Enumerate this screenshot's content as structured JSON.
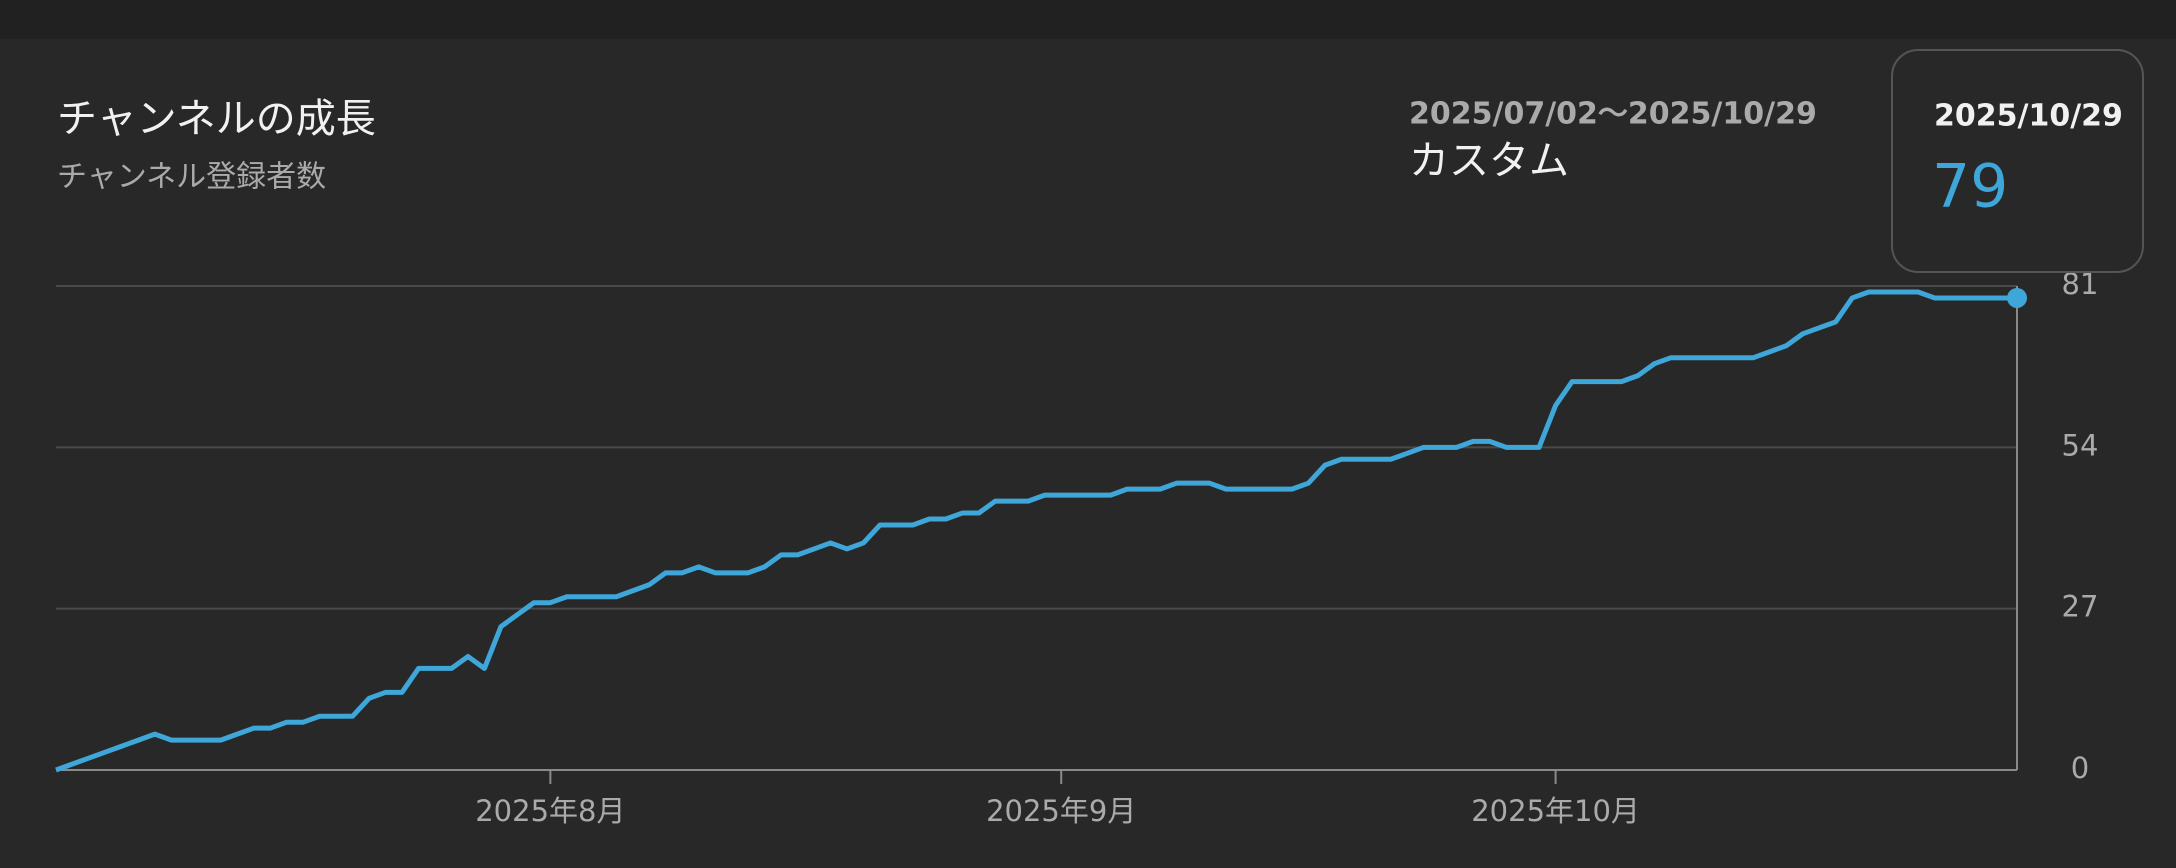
{
  "header": {
    "title": "チャンネルの成長",
    "subtitle": "チャンネル登録者数",
    "date_range": "2025/07/02〜2025/10/29",
    "period": "カスタム"
  },
  "tooltip": {
    "date": "2025/10/29"
  },
  "chart_data": {
    "type": "line",
    "color": "#3ea6d8",
    "categories": [
      null,
      null,
      null,
      null,
      null,
      null,
      null,
      null,
      null,
      null,
      null,
      null,
      null,
      null,
      null,
      null,
      null,
      null,
      null,
      null,
      null,
      null,
      null,
      null,
      null,
      null,
      null,
      null,
      null,
      null,
      "2025年8月",
      null,
      null,
      null,
      null,
      null,
      null,
      null,
      null,
      null,
      null,
      null,
      null,
      null,
      null,
      null,
      null,
      null,
      null,
      null,
      null,
      null,
      null,
      null,
      null,
      null,
      null,
      null,
      null,
      null,
      null,
      "2025年9月",
      null,
      null,
      null,
      null,
      null,
      null,
      null,
      null,
      null,
      null,
      null,
      null,
      null,
      null,
      null,
      null,
      null,
      null,
      null,
      null,
      null,
      null,
      null,
      null,
      null,
      null,
      null,
      null,
      null,
      "2025年10月",
      null,
      null,
      null,
      null,
      null,
      null,
      null,
      null,
      null,
      null,
      null,
      null,
      null,
      null,
      null,
      null,
      null,
      null,
      null,
      null,
      null,
      null,
      null,
      null,
      null,
      null,
      null,
      null
    ],
    "values": [
      0,
      1,
      2,
      3,
      4,
      5,
      6,
      5,
      5,
      5,
      5,
      6,
      7,
      7,
      8,
      8,
      9,
      9,
      9,
      12,
      13,
      13,
      17,
      17,
      17,
      19,
      17,
      24,
      26,
      28,
      28,
      29,
      29,
      29,
      29,
      30,
      31,
      33,
      33,
      34,
      33,
      33,
      33,
      34,
      36,
      36,
      37,
      38,
      37,
      38,
      41,
      41,
      41,
      42,
      42,
      43,
      43,
      45,
      45,
      45,
      46,
      46,
      46,
      46,
      46,
      47,
      47,
      47,
      48,
      48,
      48,
      47,
      47,
      47,
      47,
      47,
      48,
      51,
      52,
      52,
      52,
      52,
      53,
      54,
      54,
      54,
      55,
      55,
      54,
      54,
      54,
      61,
      65,
      65,
      65,
      65,
      66,
      68,
      69,
      69,
      69,
      69,
      69,
      69,
      70,
      71,
      73,
      74,
      75,
      79,
      80,
      80,
      80,
      80,
      79,
      79,
      79,
      79,
      79,
      79
    ],
    "ylim": [
      0,
      81
    ],
    "yticks": [
      0,
      27,
      54,
      81
    ],
    "grid": true
  }
}
